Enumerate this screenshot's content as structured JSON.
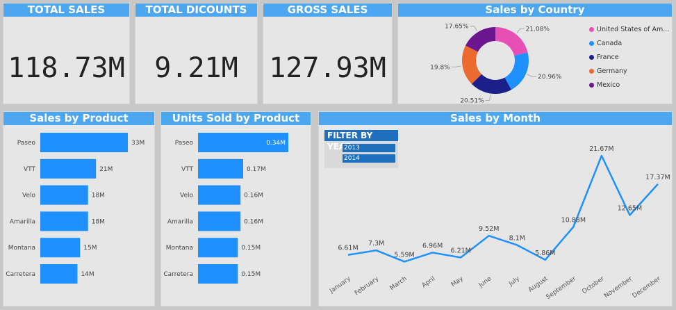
{
  "kpis": {
    "total_sales": {
      "title": "TOTAL SALES",
      "value": "118.73M"
    },
    "total_discounts": {
      "title": "TOTAL DICOUNTS",
      "value": "9.21M"
    },
    "gross_sales": {
      "title": "GROSS SALES",
      "value": "127.93M"
    }
  },
  "colors": {
    "header": "#4da6f0",
    "bar": "#1e90ff",
    "line": "#1e90ff",
    "slicer": "#1f6fbf"
  },
  "chart_data": [
    {
      "type": "pie",
      "title": "Sales by Country",
      "categories": [
        "United States of Am...",
        "Canada",
        "France",
        "Germany",
        "Mexico"
      ],
      "values": [
        21.08,
        20.96,
        20.51,
        19.8,
        17.65
      ],
      "labels": [
        "21.08%",
        "20.96%",
        "20.51%",
        "19.8%",
        "17.65%"
      ],
      "colors": [
        "#e84fb4",
        "#1e90ff",
        "#1a1f8a",
        "#eb6a30",
        "#6b168f"
      ],
      "legend_position": "right"
    },
    {
      "type": "bar",
      "orientation": "horizontal",
      "title": "Sales by Product",
      "categories": [
        "Paseo",
        "VTT",
        "Velo",
        "Amarilla",
        "Montana",
        "Carretera"
      ],
      "values": [
        33,
        21,
        18,
        18,
        15,
        14
      ],
      "labels": [
        "33M",
        "21M",
        "18M",
        "18M",
        "15M",
        "14M"
      ],
      "unit": "M"
    },
    {
      "type": "bar",
      "orientation": "horizontal",
      "title": "Units Sold by Product",
      "categories": [
        "Paseo",
        "VTT",
        "Velo",
        "Amarilla",
        "Montana",
        "Carretera"
      ],
      "values": [
        0.34,
        0.17,
        0.16,
        0.16,
        0.15,
        0.15
      ],
      "labels": [
        "0.34M",
        "0.17M",
        "0.16M",
        "0.16M",
        "0.15M",
        "0.15M"
      ],
      "unit": "M"
    },
    {
      "type": "line",
      "title": "Sales by Month",
      "x": [
        "January",
        "February",
        "March",
        "April",
        "May",
        "June",
        "July",
        "August",
        "September",
        "October",
        "November",
        "December"
      ],
      "values": [
        6.61,
        7.3,
        5.59,
        6.96,
        6.21,
        9.52,
        8.1,
        5.86,
        10.88,
        21.67,
        12.65,
        17.37
      ],
      "labels": [
        "6.61M",
        "7.3M",
        "5.59M",
        "6.96M",
        "6.21M",
        "9.52M",
        "8.1M",
        "5.86M",
        "10.88M",
        "21.67M",
        "12.65M",
        "17.37M"
      ]
    }
  ],
  "filter": {
    "title": "FILTER BY YEAR",
    "options": [
      "2013",
      "2014"
    ]
  }
}
